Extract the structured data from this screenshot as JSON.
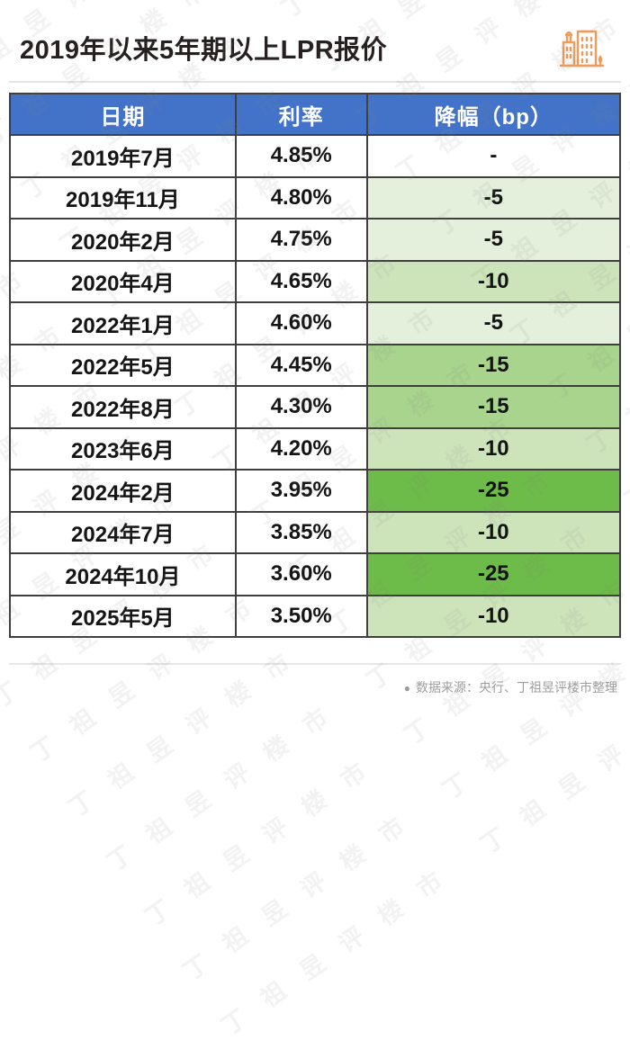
{
  "page": {
    "title": "2019年以来5年期以上LPR报价",
    "source_bullet": "●",
    "source_note": "数据来源：央行、丁祖昱评楼市整理",
    "watermark_text": "丁祖昱评楼市"
  },
  "colors": {
    "header_bg": "#4373C8",
    "border": "#3f3f3f",
    "accent_orange": "#F09B5B",
    "drop_none": "#FFFFFF",
    "drop_5": "#E4F0DB",
    "drop_10": "#CDE4BB",
    "drop_15": "#A9D48D",
    "drop_25": "#6DBC49"
  },
  "icons": {
    "building_icon": "city-buildings-icon",
    "source_dot": "dot-bullet"
  },
  "table": {
    "columns": [
      "日期",
      "利率",
      "降幅（bp）"
    ],
    "rows": [
      {
        "date": "2019年7月",
        "rate": "4.85%",
        "drop": "-",
        "level": "none"
      },
      {
        "date": "2019年11月",
        "rate": "4.80%",
        "drop": "-5",
        "level": "5"
      },
      {
        "date": "2020年2月",
        "rate": "4.75%",
        "drop": "-5",
        "level": "5"
      },
      {
        "date": "2020年4月",
        "rate": "4.65%",
        "drop": "-10",
        "level": "10"
      },
      {
        "date": "2022年1月",
        "rate": "4.60%",
        "drop": "-5",
        "level": "5"
      },
      {
        "date": "2022年5月",
        "rate": "4.45%",
        "drop": "-15",
        "level": "15"
      },
      {
        "date": "2022年8月",
        "rate": "4.30%",
        "drop": "-15",
        "level": "15"
      },
      {
        "date": "2023年6月",
        "rate": "4.20%",
        "drop": "-10",
        "level": "10"
      },
      {
        "date": "2024年2月",
        "rate": "3.95%",
        "drop": "-25",
        "level": "25"
      },
      {
        "date": "2024年7月",
        "rate": "3.85%",
        "drop": "-10",
        "level": "10"
      },
      {
        "date": "2024年10月",
        "rate": "3.60%",
        "drop": "-25",
        "level": "25"
      },
      {
        "date": "2025年5月",
        "rate": "3.50%",
        "drop": "-10",
        "level": "10"
      }
    ]
  },
  "chart_data": {
    "type": "table",
    "title": "2019年以来5年期以上LPR报价",
    "columns": [
      "日期",
      "利率",
      "降幅（bp）"
    ],
    "categories": [
      "2019年7月",
      "2019年11月",
      "2020年2月",
      "2020年4月",
      "2022年1月",
      "2022年5月",
      "2022年8月",
      "2023年6月",
      "2024年2月",
      "2024年7月",
      "2024年10月",
      "2025年5月"
    ],
    "series": [
      {
        "name": "利率(%)",
        "values": [
          4.85,
          4.8,
          4.75,
          4.65,
          4.6,
          4.45,
          4.3,
          4.2,
          3.95,
          3.85,
          3.6,
          3.5
        ]
      },
      {
        "name": "降幅(bp)",
        "values": [
          null,
          -5,
          -5,
          -10,
          -5,
          -15,
          -15,
          -10,
          -25,
          -10,
          -25,
          -10
        ]
      }
    ],
    "notes": "降幅列按幅度深浅填充绿色：-5最浅，-25最深",
    "source": "数据来源：央行、丁祖昱评楼市整理"
  }
}
